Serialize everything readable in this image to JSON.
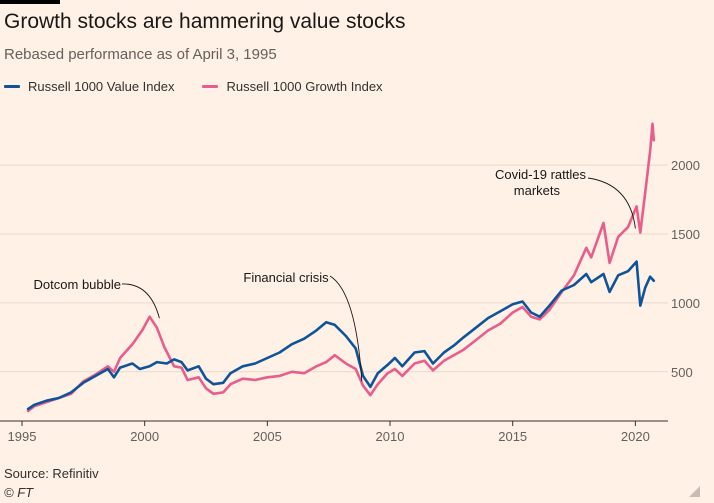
{
  "header": {
    "title": "Growth stocks are hammering value stocks",
    "subtitle": "Rebased performance as of April 3, 1995"
  },
  "legend": {
    "value_label": "Russell 1000 Value Index",
    "growth_label": "Russell 1000 Growth Index"
  },
  "footer": {
    "source": "Source: Refinitiv",
    "credit": "© FT"
  },
  "colors": {
    "value": "#0f5499",
    "growth": "#e95d8c",
    "grid": "#e6d9ce",
    "background": "#fff1e5"
  },
  "chart_data": {
    "type": "line",
    "title": "Growth stocks are hammering value stocks",
    "subtitle": "Rebased performance as of April 3, 1995",
    "xlabel": "",
    "ylabel": "",
    "xlim": [
      1995,
      2020.8
    ],
    "ylim": [
      150,
      2400
    ],
    "x_ticks": [
      1995,
      2000,
      2005,
      2010,
      2015,
      2020
    ],
    "y_ticks": [
      500,
      1000,
      1500,
      2000
    ],
    "y_axis_side": "right",
    "grid": true,
    "legend_position": "top-left",
    "series": [
      {
        "name": "Russell 1000 Value Index",
        "color": "#0f5499",
        "points": [
          [
            1995.25,
            230
          ],
          [
            1995.5,
            260
          ],
          [
            1996,
            290
          ],
          [
            1996.5,
            310
          ],
          [
            1997,
            350
          ],
          [
            1997.5,
            420
          ],
          [
            1998,
            470
          ],
          [
            1998.5,
            520
          ],
          [
            1998.75,
            460
          ],
          [
            1999,
            530
          ],
          [
            1999.5,
            560
          ],
          [
            1999.8,
            520
          ],
          [
            2000.2,
            540
          ],
          [
            2000.5,
            570
          ],
          [
            2000.9,
            560
          ],
          [
            2001.2,
            590
          ],
          [
            2001.5,
            570
          ],
          [
            2001.75,
            510
          ],
          [
            2002.2,
            540
          ],
          [
            2002.5,
            450
          ],
          [
            2002.8,
            410
          ],
          [
            2003.2,
            420
          ],
          [
            2003.5,
            490
          ],
          [
            2004,
            540
          ],
          [
            2004.5,
            560
          ],
          [
            2005,
            600
          ],
          [
            2005.5,
            640
          ],
          [
            2006,
            700
          ],
          [
            2006.5,
            740
          ],
          [
            2007,
            800
          ],
          [
            2007.4,
            860
          ],
          [
            2007.75,
            840
          ],
          [
            2008.2,
            760
          ],
          [
            2008.6,
            670
          ],
          [
            2008.9,
            470
          ],
          [
            2009.2,
            390
          ],
          [
            2009.5,
            490
          ],
          [
            2009.9,
            550
          ],
          [
            2010.2,
            600
          ],
          [
            2010.5,
            540
          ],
          [
            2011,
            640
          ],
          [
            2011.4,
            650
          ],
          [
            2011.75,
            560
          ],
          [
            2012.2,
            640
          ],
          [
            2012.6,
            690
          ],
          [
            2013,
            750
          ],
          [
            2013.5,
            820
          ],
          [
            2014,
            890
          ],
          [
            2014.5,
            940
          ],
          [
            2015,
            990
          ],
          [
            2015.4,
            1010
          ],
          [
            2015.75,
            930
          ],
          [
            2016.1,
            900
          ],
          [
            2016.5,
            980
          ],
          [
            2017,
            1090
          ],
          [
            2017.5,
            1130
          ],
          [
            2018,
            1210
          ],
          [
            2018.2,
            1150
          ],
          [
            2018.7,
            1210
          ],
          [
            2018.95,
            1080
          ],
          [
            2019.3,
            1200
          ],
          [
            2019.7,
            1230
          ],
          [
            2020.05,
            1300
          ],
          [
            2020.2,
            980
          ],
          [
            2020.4,
            1110
          ],
          [
            2020.6,
            1190
          ],
          [
            2020.75,
            1160
          ]
        ]
      },
      {
        "name": "Russell 1000 Growth Index",
        "color": "#e95d8c",
        "points": [
          [
            1995.25,
            215
          ],
          [
            1995.5,
            250
          ],
          [
            1996,
            280
          ],
          [
            1996.5,
            310
          ],
          [
            1997,
            340
          ],
          [
            1997.5,
            430
          ],
          [
            1998,
            480
          ],
          [
            1998.5,
            540
          ],
          [
            1998.75,
            500
          ],
          [
            1999,
            600
          ],
          [
            1999.5,
            700
          ],
          [
            1999.9,
            800
          ],
          [
            2000.2,
            900
          ],
          [
            2000.5,
            820
          ],
          [
            2000.8,
            680
          ],
          [
            2001.2,
            540
          ],
          [
            2001.5,
            530
          ],
          [
            2001.75,
            440
          ],
          [
            2002.2,
            460
          ],
          [
            2002.5,
            380
          ],
          [
            2002.8,
            340
          ],
          [
            2003.2,
            350
          ],
          [
            2003.5,
            410
          ],
          [
            2004,
            450
          ],
          [
            2004.5,
            440
          ],
          [
            2005,
            460
          ],
          [
            2005.5,
            470
          ],
          [
            2006,
            500
          ],
          [
            2006.5,
            490
          ],
          [
            2007,
            540
          ],
          [
            2007.4,
            570
          ],
          [
            2007.75,
            620
          ],
          [
            2008.2,
            560
          ],
          [
            2008.6,
            520
          ],
          [
            2008.9,
            400
          ],
          [
            2009.2,
            330
          ],
          [
            2009.5,
            410
          ],
          [
            2009.9,
            490
          ],
          [
            2010.2,
            520
          ],
          [
            2010.5,
            470
          ],
          [
            2011,
            560
          ],
          [
            2011.4,
            580
          ],
          [
            2011.75,
            510
          ],
          [
            2012.2,
            580
          ],
          [
            2012.6,
            620
          ],
          [
            2013,
            660
          ],
          [
            2013.5,
            730
          ],
          [
            2014,
            800
          ],
          [
            2014.5,
            850
          ],
          [
            2015,
            930
          ],
          [
            2015.4,
            970
          ],
          [
            2015.75,
            900
          ],
          [
            2016.1,
            880
          ],
          [
            2016.5,
            950
          ],
          [
            2017,
            1080
          ],
          [
            2017.5,
            1200
          ],
          [
            2018,
            1400
          ],
          [
            2018.2,
            1330
          ],
          [
            2018.7,
            1580
          ],
          [
            2018.95,
            1290
          ],
          [
            2019.3,
            1480
          ],
          [
            2019.7,
            1550
          ],
          [
            2020.05,
            1700
          ],
          [
            2020.2,
            1510
          ],
          [
            2020.4,
            1800
          ],
          [
            2020.6,
            2100
          ],
          [
            2020.7,
            2300
          ],
          [
            2020.75,
            2180
          ]
        ]
      }
    ],
    "annotations": [
      {
        "text": "Dotcom bubble",
        "x": 2000.6,
        "y": 860
      },
      {
        "text": "Financial crisis",
        "x": 2008.85,
        "y": 460
      },
      {
        "text": "Covid-19 rattles markets",
        "x": 2020.0,
        "y": 1540
      }
    ]
  }
}
